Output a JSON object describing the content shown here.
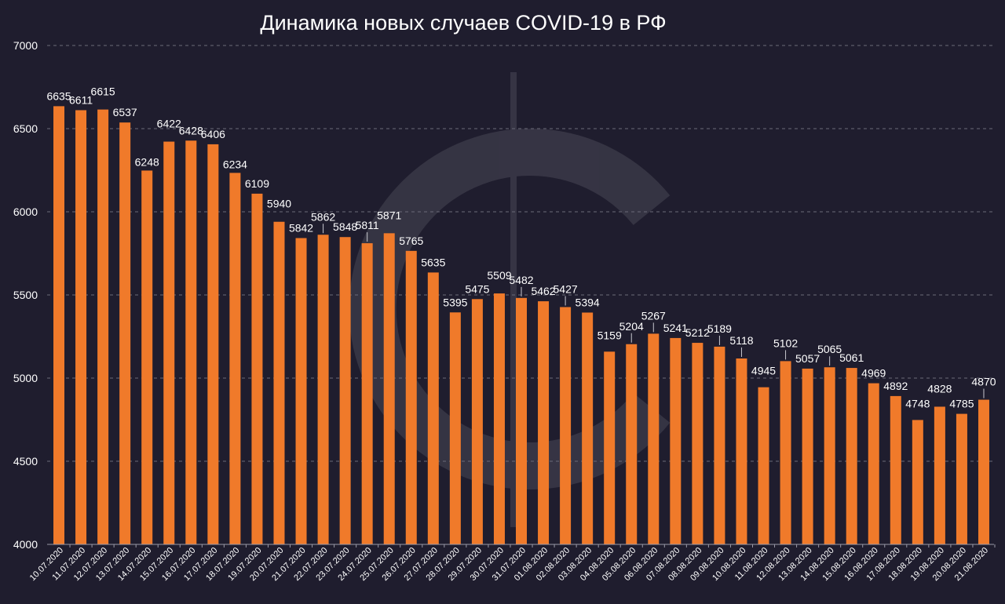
{
  "chart_data": {
    "type": "bar",
    "title": "Динамика новых случаев COVID-19 в РФ",
    "xlabel": "",
    "ylabel": "",
    "ylim": [
      4000,
      7000
    ],
    "yticks": [
      4000,
      4500,
      5000,
      5500,
      6000,
      6500,
      7000
    ],
    "grid": true,
    "bar_color": "#f07a2a",
    "categories": [
      "10.07.2020",
      "11.07.2020",
      "12.07.2020",
      "13.07.2020",
      "14.07.2020",
      "15.07.2020",
      "16.07.2020",
      "17.07.2020",
      "18.07.2020",
      "19.07.2020",
      "20.07.2020",
      "21.07.2020",
      "22.07.2020",
      "23.07.2020",
      "24.07.2020",
      "25.07.2020",
      "26.07.2020",
      "27.07.2020",
      "28.07.2020",
      "29.07.2020",
      "30.07.2020",
      "31.07.2020",
      "01.08.2020",
      "02.08.2020",
      "03.08.2020",
      "04.08.2020",
      "05.08.2020",
      "06.08.2020",
      "07.08.2020",
      "08.08.2020",
      "09.08.2020",
      "10.08.2020",
      "11.08.2020",
      "12.08.2020",
      "13.08.2020",
      "14.08.2020",
      "15.08.2020",
      "16.08.2020",
      "17.08.2020",
      "18.08.2020",
      "19.08.2020",
      "20.08.2020",
      "21.08.2020"
    ],
    "values": [
      6635,
      6611,
      6615,
      6537,
      6248,
      6422,
      6428,
      6406,
      6234,
      6109,
      5940,
      5842,
      5862,
      5848,
      5811,
      5871,
      5765,
      5635,
      5395,
      5475,
      5509,
      5482,
      5462,
      5427,
      5394,
      5159,
      5204,
      5267,
      5241,
      5212,
      5189,
      5118,
      4945,
      5102,
      5057,
      5065,
      5061,
      4969,
      4892,
      4748,
      4828,
      4785,
      4870
    ]
  }
}
